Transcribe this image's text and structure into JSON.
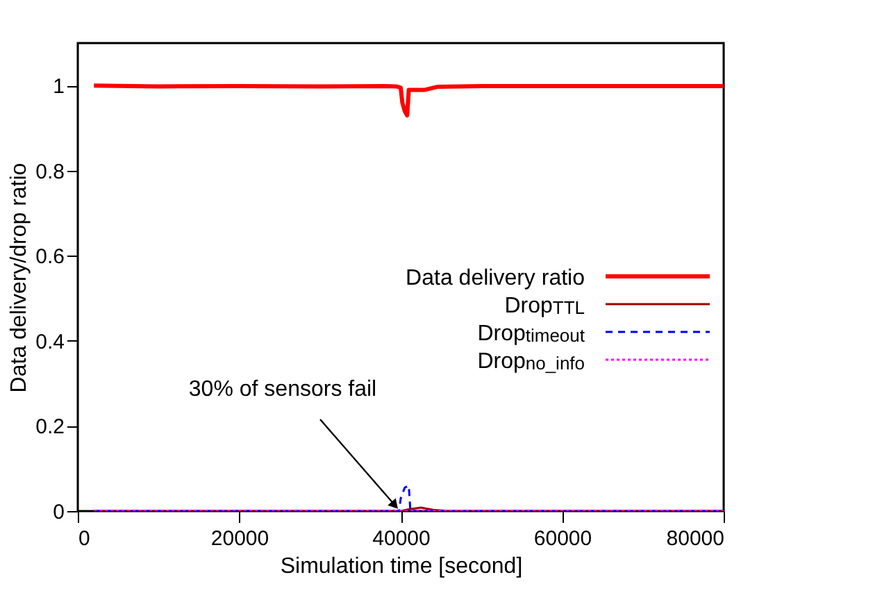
{
  "chart_data": {
    "type": "line",
    "xlabel": "Simulation time [second]",
    "ylabel": "Data delivery/drop ratio",
    "xlim": [
      0,
      80000
    ],
    "xticks": [
      0,
      20000,
      40000,
      60000,
      80000
    ],
    "ylim": [
      0,
      1.1
    ],
    "yticks": [
      0,
      0.2,
      0.4,
      0.6,
      0.8,
      1
    ],
    "grid": false,
    "legend": "right",
    "marker": "none",
    "annotations": [
      {
        "text": "30% of sensors fail",
        "x": 40000,
        "y": 0
      }
    ],
    "series": [
      {
        "name": "Data delivery ratio",
        "color": "#ff0000",
        "line_style": "solid",
        "x": [
          2000,
          10000,
          20000,
          30000,
          38000,
          39500,
          40000,
          40200,
          40500,
          40800,
          41000,
          43000,
          44500,
          50000,
          60000,
          70000,
          80000
        ],
        "values": [
          1,
          0.998,
          0.999,
          0.998,
          0.999,
          0.998,
          0.995,
          0.96,
          0.94,
          0.93,
          0.99,
          0.99,
          0.997,
          0.999,
          0.999,
          0.999,
          0.999
        ]
      },
      {
        "name": "Drop$_{TTL}$",
        "color": "#a00000",
        "line_style": "solid",
        "x": [
          2000,
          40000,
          41000,
          42500,
          44000,
          46000,
          80000
        ],
        "values": [
          0,
          0,
          0.004,
          0.008,
          0.003,
          0,
          0
        ]
      },
      {
        "name": "Drop$_{timeout}$",
        "color": "#0000ff",
        "line_style": "dashed",
        "x": [
          2000,
          39800,
          40000,
          40500,
          41000,
          41200,
          80000
        ],
        "values": [
          0,
          0,
          0.03,
          0.055,
          0.06,
          0,
          0
        ]
      },
      {
        "name": "Drop$_{no_info}$",
        "color": "#ff00ff",
        "line_style": "dotted",
        "x": [
          2000,
          80000
        ],
        "values": [
          0,
          0
        ]
      }
    ]
  }
}
